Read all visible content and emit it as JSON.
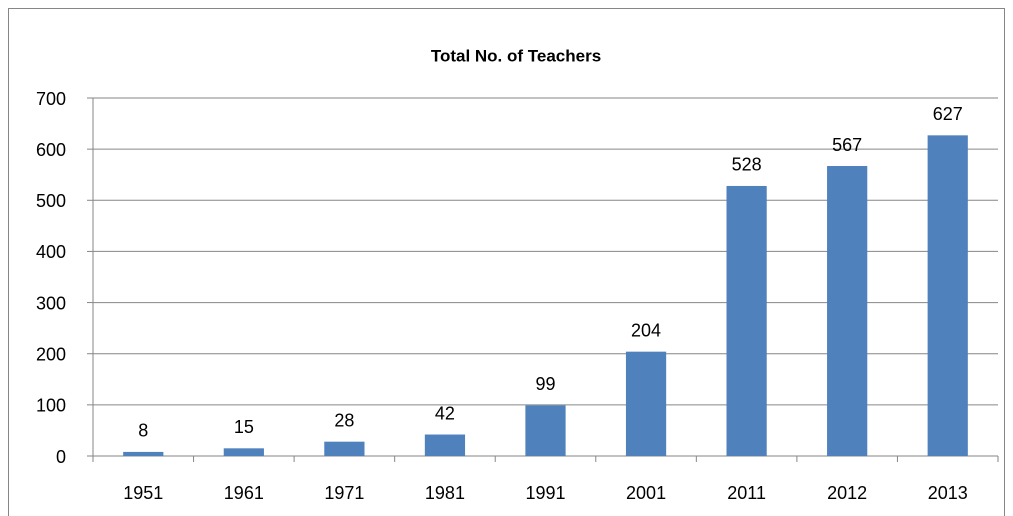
{
  "chart_data": {
    "type": "bar",
    "title": "Total No. of Teachers",
    "categories": [
      "1951",
      "1961",
      "1971",
      "1981",
      "1991",
      "2001",
      "2011",
      "2012",
      "2013"
    ],
    "values": [
      8,
      15,
      28,
      42,
      99,
      204,
      528,
      567,
      627
    ],
    "color": "#4f81bd",
    "ylim": [
      0,
      700
    ],
    "yticks": [
      0,
      100,
      200,
      300,
      400,
      500,
      600,
      700
    ],
    "grid": true
  }
}
